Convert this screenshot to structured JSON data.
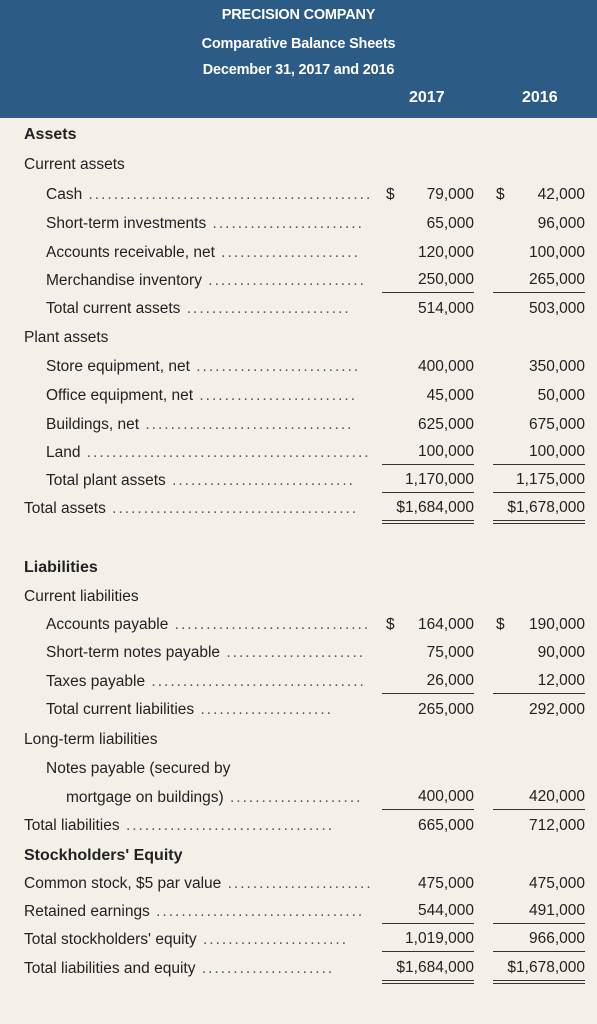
{
  "header": {
    "company": "PRECISION COMPANY",
    "statement": "Comparative Balance Sheets",
    "date": "December 31, 2017 and 2016",
    "year1": "2017",
    "year2": "2016"
  },
  "rows": [
    {
      "label": "Assets",
      "type": "section"
    },
    {
      "label": "Current assets",
      "type": "group"
    },
    {
      "label": "Cash",
      "indent": 1,
      "v1": "79,000",
      "v2": "42,000",
      "cur": true
    },
    {
      "label": "Short-term investments",
      "indent": 1,
      "v1": "65,000",
      "v2": "96,000"
    },
    {
      "label": "Accounts receivable, net",
      "indent": 1,
      "v1": "120,000",
      "v2": "100,000"
    },
    {
      "label": "Merchandise inventory",
      "indent": 1,
      "v1": "250,000",
      "v2": "265,000",
      "rule": "single"
    },
    {
      "label": "Total current assets",
      "indent": 1,
      "v1": "514,000",
      "v2": "503,000"
    },
    {
      "label": "Plant assets",
      "type": "group"
    },
    {
      "label": "Store equipment, net",
      "indent": 1,
      "v1": "400,000",
      "v2": "350,000"
    },
    {
      "label": "Office equipment, net",
      "indent": 1,
      "v1": "45,000",
      "v2": "50,000"
    },
    {
      "label": "Buildings, net",
      "indent": 1,
      "v1": "625,000",
      "v2": "675,000"
    },
    {
      "label": "Land",
      "indent": 1,
      "v1": "100,000",
      "v2": "100,000",
      "rule": "single"
    },
    {
      "label": "Total plant assets",
      "indent": 1,
      "v1": "1,170,000",
      "v2": "1,175,000",
      "rule": "single"
    },
    {
      "label": "Total assets",
      "indent": 0,
      "v1": "$1,684,000",
      "v2": "$1,678,000",
      "rule": "double"
    },
    {
      "label": "Liabilities",
      "type": "section"
    },
    {
      "label": "Current liabilities",
      "type": "group"
    },
    {
      "label": "Accounts payable",
      "indent": 1,
      "v1": "164,000",
      "v2": "190,000",
      "cur": true
    },
    {
      "label": "Short-term notes payable",
      "indent": 1,
      "v1": "75,000",
      "v2": "90,000"
    },
    {
      "label": "Taxes payable",
      "indent": 1,
      "v1": "26,000",
      "v2": "12,000",
      "rule": "single"
    },
    {
      "label": "Total current liabilities",
      "indent": 1,
      "v1": "265,000",
      "v2": "292,000"
    },
    {
      "label": "Long-term liabilities",
      "type": "group"
    },
    {
      "label": "Notes payable (secured by",
      "indent": 1,
      "type": "text"
    },
    {
      "label": "mortgage on buildings)",
      "indent": 2,
      "v1": "400,000",
      "v2": "420,000",
      "rule": "single"
    },
    {
      "label": "Total liabilities",
      "indent": 0,
      "v1": "665,000",
      "v2": "712,000"
    },
    {
      "label": "Stockholders' Equity",
      "type": "section"
    },
    {
      "label": "Common stock, $5 par value",
      "indent": 0,
      "v1": "475,000",
      "v2": "475,000"
    },
    {
      "label": "Retained earnings",
      "indent": 0,
      "v1": "544,000",
      "v2": "491,000",
      "rule": "single"
    },
    {
      "label": "Total stockholders' equity",
      "indent": 0,
      "v1": "1,019,000",
      "v2": "966,000",
      "rule": "single"
    },
    {
      "label": "Total liabilities and equity",
      "indent": 0,
      "v1": "$1,684,000",
      "v2": "$1,678,000",
      "rule": "double"
    }
  ],
  "currency_symbol": "$"
}
